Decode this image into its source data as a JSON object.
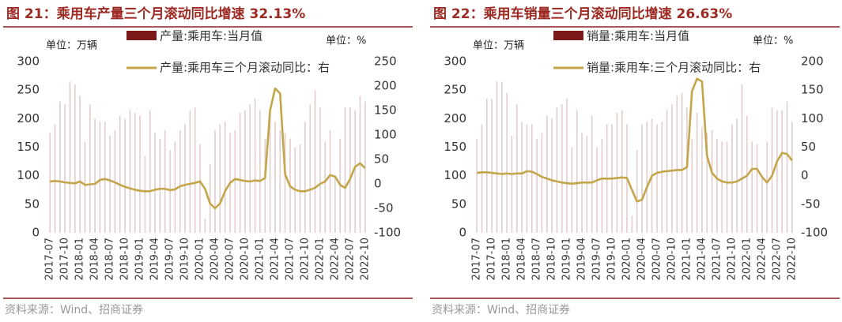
{
  "chart_data": [
    {
      "type": "bar",
      "title": "图 21：乘用车产量三个月滚动同比增速 32.13%",
      "ylabel": "单位：万辆",
      "y2label": "单位：%",
      "source": "资料来源：Wind、招商证券",
      "categories": [
        "2017-07",
        null,
        null,
        "2017-10",
        null,
        null,
        "2018-01",
        null,
        null,
        "2018-04",
        null,
        null,
        "2018-07",
        null,
        null,
        "2018-10",
        null,
        null,
        "2019-01",
        null,
        null,
        "2019-04",
        null,
        null,
        "2019-07",
        null,
        null,
        "2019-10",
        null,
        null,
        "2020-01",
        null,
        null,
        "2020-04",
        null,
        null,
        "2020-07",
        null,
        null,
        "2020-10",
        null,
        null,
        "2021-01",
        null,
        null,
        "2021-04",
        null,
        null,
        "2021-07",
        null,
        null,
        "2021-10",
        null,
        null,
        "2022-01",
        null,
        null,
        "2022-04",
        null,
        null,
        "2022-07",
        null,
        null,
        "2022-10"
      ],
      "series": [
        {
          "name": "产量:乘用车:当月值",
          "type": "bar",
          "color": "#7a1a1a",
          "values": [
            175,
            190,
            230,
            225,
            265,
            260,
            240,
            160,
            225,
            200,
            195,
            195,
            170,
            180,
            205,
            200,
            215,
            210,
            205,
            135,
            215,
            175,
            165,
            180,
            145,
            160,
            180,
            190,
            215,
            220,
            155,
            25,
            120,
            180,
            190,
            195,
            175,
            180,
            210,
            215,
            225,
            235,
            215,
            165,
            210,
            195,
            180,
            175,
            165,
            150,
            155,
            195,
            225,
            250,
            220,
            160,
            180,
            100,
            165,
            220,
            220,
            215,
            240,
            230
          ]
        },
        {
          "name": "产量:乘用车三个月滚动同比：右",
          "type": "line",
          "axis": "y2",
          "color": "#c4a64a",
          "values": [
            5,
            6,
            5,
            3,
            2,
            1,
            5,
            -2,
            -1,
            0,
            8,
            10,
            7,
            3,
            -2,
            -6,
            -9,
            -12,
            -14,
            -15,
            -15,
            -12,
            -10,
            -10,
            -13,
            -11,
            -5,
            -2,
            0,
            2,
            5,
            -10,
            -40,
            -50,
            -40,
            -15,
            2,
            10,
            8,
            6,
            5,
            7,
            6,
            12,
            150,
            195,
            185,
            20,
            -5,
            -12,
            -15,
            -15,
            -12,
            -8,
            0,
            5,
            18,
            15,
            -2,
            -8,
            10,
            35,
            42,
            32.13
          ]
        }
      ],
      "ylim": [
        0,
        300
      ],
      "yticks": [
        0,
        50,
        100,
        150,
        200,
        250,
        300
      ],
      "y2lim": [
        -100,
        250
      ],
      "y2ticks": [
        -100,
        -50,
        0,
        50,
        100,
        150,
        200,
        250
      ]
    },
    {
      "type": "bar",
      "title": "图 22：乘用车销量三个月滚动同比增速 26.63%",
      "ylabel": "单位：万辆",
      "y2label": "单位：%",
      "source": "资料来源：Wind、招商证券",
      "categories": [
        "2017-07",
        null,
        null,
        "2017-10",
        null,
        null,
        "2018-01",
        null,
        null,
        "2018-04",
        null,
        null,
        "2018-07",
        null,
        null,
        "2018-10",
        null,
        null,
        "2019-01",
        null,
        null,
        "2019-04",
        null,
        null,
        "2019-07",
        null,
        null,
        "2019-10",
        null,
        null,
        "2020-01",
        null,
        null,
        "2020-04",
        null,
        null,
        "2020-07",
        null,
        null,
        "2020-10",
        null,
        null,
        "2021-01",
        null,
        null,
        "2021-04",
        null,
        null,
        "2021-07",
        null,
        null,
        "2021-10",
        null,
        null,
        "2022-01",
        null,
        null,
        "2022-04",
        null,
        null,
        "2022-07",
        null,
        null,
        "2022-10"
      ],
      "series": [
        {
          "name": "销量:乘用车:当月值",
          "type": "bar",
          "color": "#7a1a1a",
          "values": [
            165,
            190,
            235,
            235,
            265,
            265,
            245,
            170,
            225,
            195,
            190,
            190,
            165,
            175,
            205,
            200,
            220,
            225,
            235,
            150,
            215,
            175,
            170,
            205,
            150,
            165,
            190,
            190,
            210,
            215,
            190,
            30,
            145,
            190,
            195,
            200,
            190,
            195,
            215,
            225,
            240,
            245,
            220,
            165,
            210,
            185,
            175,
            180,
            165,
            160,
            160,
            190,
            200,
            260,
            205,
            160,
            155,
            100,
            160,
            220,
            215,
            215,
            230,
            195
          ]
        },
        {
          "name": "销量:乘用车:三个月滚动同比：右",
          "type": "line",
          "axis": "y2",
          "color": "#c4a64a",
          "values": [
            5,
            6,
            6,
            5,
            4,
            3,
            4,
            3,
            4,
            4,
            8,
            7,
            3,
            -2,
            -5,
            -8,
            -10,
            -12,
            -13,
            -14,
            -13,
            -12,
            -12,
            -12,
            -8,
            -5,
            -5,
            -5,
            -4,
            -3,
            -4,
            -25,
            -45,
            -42,
            -20,
            0,
            5,
            7,
            8,
            9,
            10,
            10,
            15,
            148,
            170,
            165,
            35,
            5,
            -5,
            -10,
            -12,
            -12,
            -10,
            -5,
            0,
            12,
            12,
            -2,
            -12,
            0,
            25,
            40,
            38,
            26.63
          ]
        }
      ],
      "ylim": [
        0,
        300
      ],
      "yticks": [
        0,
        50,
        100,
        150,
        200,
        250,
        300
      ],
      "y2lim": [
        -100,
        200
      ],
      "y2ticks": [
        -100,
        -50,
        0,
        50,
        100,
        150,
        200
      ]
    }
  ]
}
